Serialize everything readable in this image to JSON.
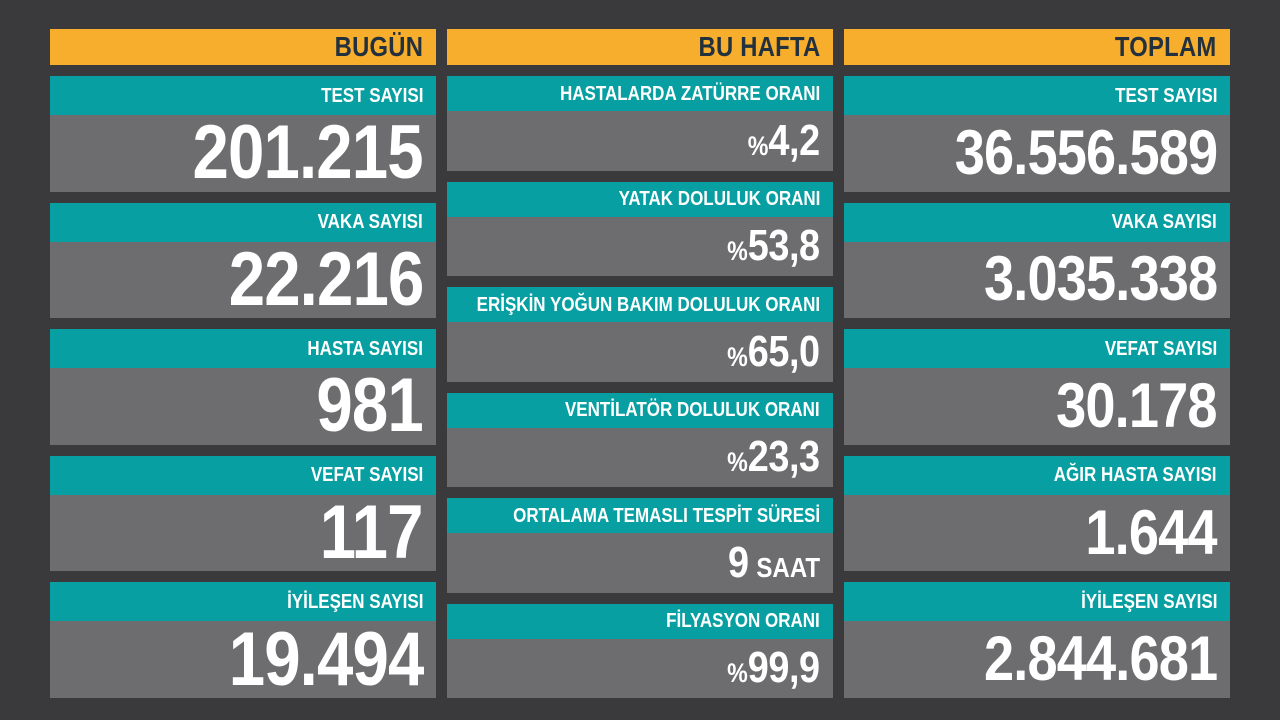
{
  "colors": {
    "background": "#3A393B",
    "header_orange": "#F6AE2C",
    "label_teal": "#079FA1",
    "value_gray": "#6D6D6F",
    "header_text_navy": "#23303E",
    "value_text_white": "#FFFFFF"
  },
  "columns": {
    "today": {
      "header": "BUGÜN",
      "cards": [
        {
          "label": "TEST SAYISI",
          "value": "201.215"
        },
        {
          "label": "VAKA SAYISI",
          "value": "22.216"
        },
        {
          "label": "HASTA SAYISI",
          "value": "981"
        },
        {
          "label": "VEFAT SAYISI",
          "value": "117"
        },
        {
          "label": "İYİLEŞEN SAYISI",
          "value": "19.494"
        }
      ]
    },
    "this_week": {
      "header": "BU HAFTA",
      "cards": [
        {
          "label": "HASTALARDA ZATÜRRE ORANI",
          "prefix": "%",
          "value": "4,2",
          "suffix": ""
        },
        {
          "label": "YATAK DOLULUK ORANI",
          "prefix": "%",
          "value": "53,8",
          "suffix": ""
        },
        {
          "label": "ERİŞKİN YOĞUN BAKIM DOLULUK ORANI",
          "prefix": "%",
          "value": "65,0",
          "suffix": ""
        },
        {
          "label": "VENTİLATÖR DOLULUK ORANI",
          "prefix": "%",
          "value": "23,3",
          "suffix": ""
        },
        {
          "label": "ORTALAMA TEMASLI TESPİT SÜRESİ",
          "prefix": "",
          "value": "9",
          "suffix": "SAAT"
        },
        {
          "label": "FİLYASYON ORANI",
          "prefix": "%",
          "value": "99,9",
          "suffix": ""
        }
      ]
    },
    "total": {
      "header": "TOPLAM",
      "cards": [
        {
          "label": "TEST SAYISI",
          "value": "36.556.589"
        },
        {
          "label": "VAKA SAYISI",
          "value": "3.035.338"
        },
        {
          "label": "VEFAT SAYISI",
          "value": "30.178"
        },
        {
          "label": "AĞIR HASTA SAYISI",
          "value": "1.644"
        },
        {
          "label": "İYİLEŞEN SAYISI",
          "value": "2.844.681"
        }
      ]
    }
  },
  "chart_data": {
    "type": "table",
    "groups": [
      {
        "name": "BUGÜN",
        "rows": [
          {
            "label": "TEST SAYISI",
            "value": 201215
          },
          {
            "label": "VAKA SAYISI",
            "value": 22216
          },
          {
            "label": "HASTA SAYISI",
            "value": 981
          },
          {
            "label": "VEFAT SAYISI",
            "value": 117
          },
          {
            "label": "İYİLEŞEN SAYISI",
            "value": 19494
          }
        ]
      },
      {
        "name": "BU HAFTA",
        "rows": [
          {
            "label": "HASTALARDA ZATÜRRE ORANI",
            "value": 4.2,
            "unit": "%"
          },
          {
            "label": "YATAK DOLULUK ORANI",
            "value": 53.8,
            "unit": "%"
          },
          {
            "label": "ERİŞKİN YOĞUN BAKIM DOLULUK ORANI",
            "value": 65.0,
            "unit": "%"
          },
          {
            "label": "VENTİLATÖR DOLULUK ORANI",
            "value": 23.3,
            "unit": "%"
          },
          {
            "label": "ORTALAMA TEMASLI TESPİT SÜRESİ",
            "value": 9,
            "unit": "SAAT"
          },
          {
            "label": "FİLYASYON ORANI",
            "value": 99.9,
            "unit": "%"
          }
        ]
      },
      {
        "name": "TOPLAM",
        "rows": [
          {
            "label": "TEST SAYISI",
            "value": 36556589
          },
          {
            "label": "VAKA SAYISI",
            "value": 3035338
          },
          {
            "label": "VEFAT SAYISI",
            "value": 30178
          },
          {
            "label": "AĞIR HASTA SAYISI",
            "value": 1644
          },
          {
            "label": "İYİLEŞEN SAYISI",
            "value": 2844681
          }
        ]
      }
    ]
  }
}
